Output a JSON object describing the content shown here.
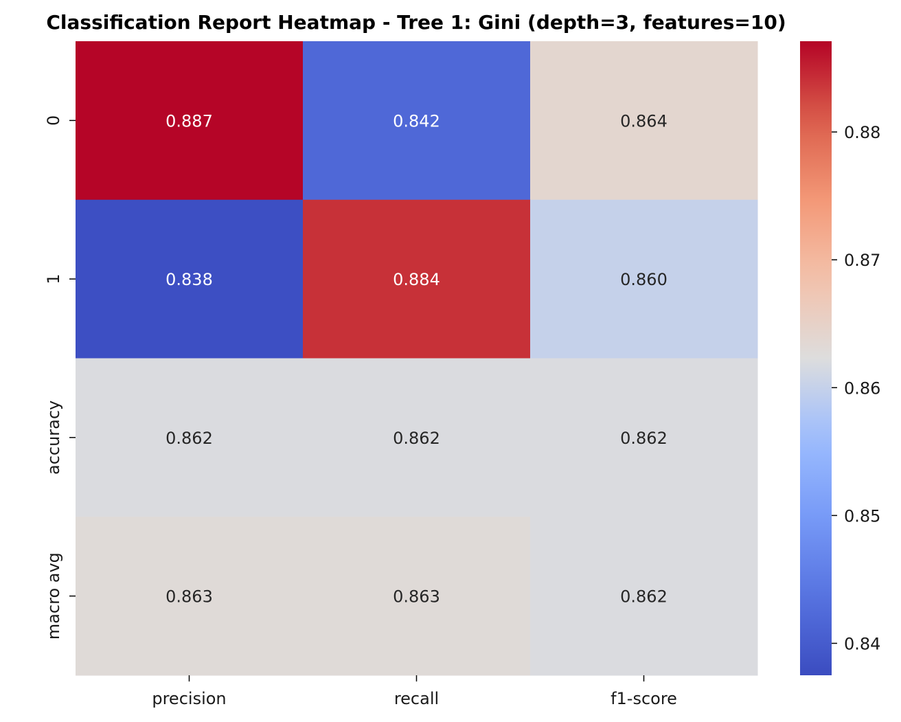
{
  "chart_data": {
    "type": "heatmap",
    "title": "Classification Report Heatmap - Tree 1: Gini (depth=3, features=10)",
    "columns": [
      "precision",
      "recall",
      "f1-score"
    ],
    "rows": [
      "0",
      "1",
      "accuracy",
      "macro avg"
    ],
    "values": [
      [
        0.887,
        0.842,
        0.864
      ],
      [
        0.838,
        0.884,
        0.86
      ],
      [
        0.862,
        0.862,
        0.862
      ],
      [
        0.863,
        0.863,
        0.862
      ]
    ],
    "cell_labels": [
      [
        "0.887",
        "0.842",
        "0.864"
      ],
      [
        "0.838",
        "0.884",
        "0.860"
      ],
      [
        "0.862",
        "0.862",
        "0.862"
      ],
      [
        "0.863",
        "0.863",
        "0.862"
      ]
    ],
    "colormap": "coolwarm",
    "vmin": 0.8375,
    "vmax": 0.8871,
    "colorbar_ticks": [
      "0.84",
      "0.85",
      "0.86",
      "0.87",
      "0.88"
    ],
    "colorbar_tick_values": [
      0.84,
      0.85,
      0.86,
      0.87,
      0.88
    ],
    "grid": false,
    "colorbar_position": "right"
  }
}
